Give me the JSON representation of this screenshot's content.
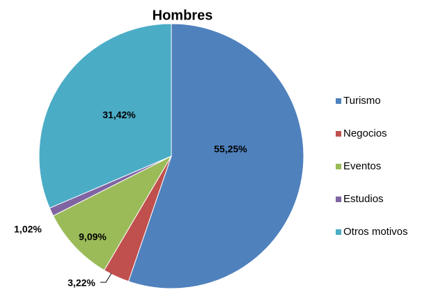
{
  "chart_data": {
    "type": "pie",
    "title": "Hombres",
    "categories": [
      "Turismo",
      "Negocios",
      "Eventos",
      "Estudios",
      "Otros motivos"
    ],
    "values": [
      55.25,
      3.22,
      9.09,
      1.02,
      31.42
    ],
    "value_labels": [
      "55,25%",
      "3,22%",
      "9,09%",
      "1,02%",
      "31,42%"
    ],
    "colors": [
      "#4f81bd",
      "#c0504d",
      "#9bbb59",
      "#8064a2",
      "#4bacc6"
    ],
    "legend": "right"
  }
}
